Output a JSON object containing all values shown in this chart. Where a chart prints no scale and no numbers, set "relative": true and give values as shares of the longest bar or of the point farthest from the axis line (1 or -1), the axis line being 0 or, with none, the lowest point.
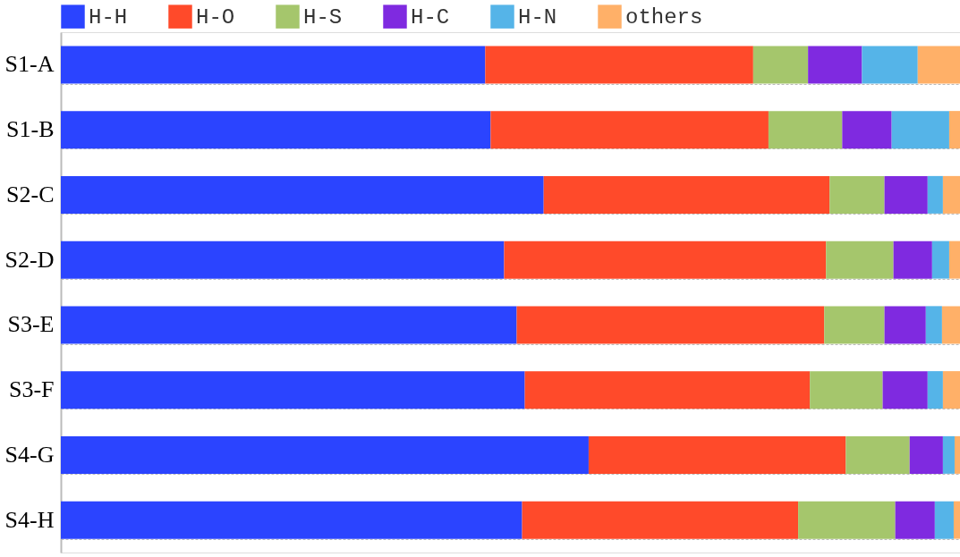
{
  "chart_data": {
    "type": "bar",
    "orientation": "horizontal",
    "stacked": true,
    "relative": true,
    "legend": "top",
    "grid": "y",
    "categories": [
      "S1-A",
      "S1-B",
      "S2-C",
      "S2-D",
      "S3-E",
      "S3-F",
      "S4-G",
      "S4-H"
    ],
    "series": [
      {
        "name": "H-H",
        "color": "#2b44ff",
        "values": [
          0.472,
          0.478,
          0.537,
          0.493,
          0.507,
          0.516,
          0.587,
          0.513
        ]
      },
      {
        "name": "H-O",
        "color": "#ff4a2a",
        "values": [
          0.298,
          0.309,
          0.318,
          0.358,
          0.342,
          0.317,
          0.286,
          0.307
        ]
      },
      {
        "name": "H-S",
        "color": "#a5c66c",
        "values": [
          0.061,
          0.082,
          0.061,
          0.075,
          0.067,
          0.081,
          0.071,
          0.108
        ]
      },
      {
        "name": "H-C",
        "color": "#7f2ae0",
        "values": [
          0.06,
          0.055,
          0.048,
          0.043,
          0.046,
          0.05,
          0.037,
          0.044
        ]
      },
      {
        "name": "H-N",
        "color": "#55b4e8",
        "values": [
          0.062,
          0.064,
          0.017,
          0.019,
          0.018,
          0.017,
          0.013,
          0.021
        ]
      },
      {
        "name": "others",
        "color": "#ffb068",
        "values": [
          0.047,
          0.012,
          0.019,
          0.012,
          0.02,
          0.019,
          0.006,
          0.007
        ]
      }
    ]
  }
}
